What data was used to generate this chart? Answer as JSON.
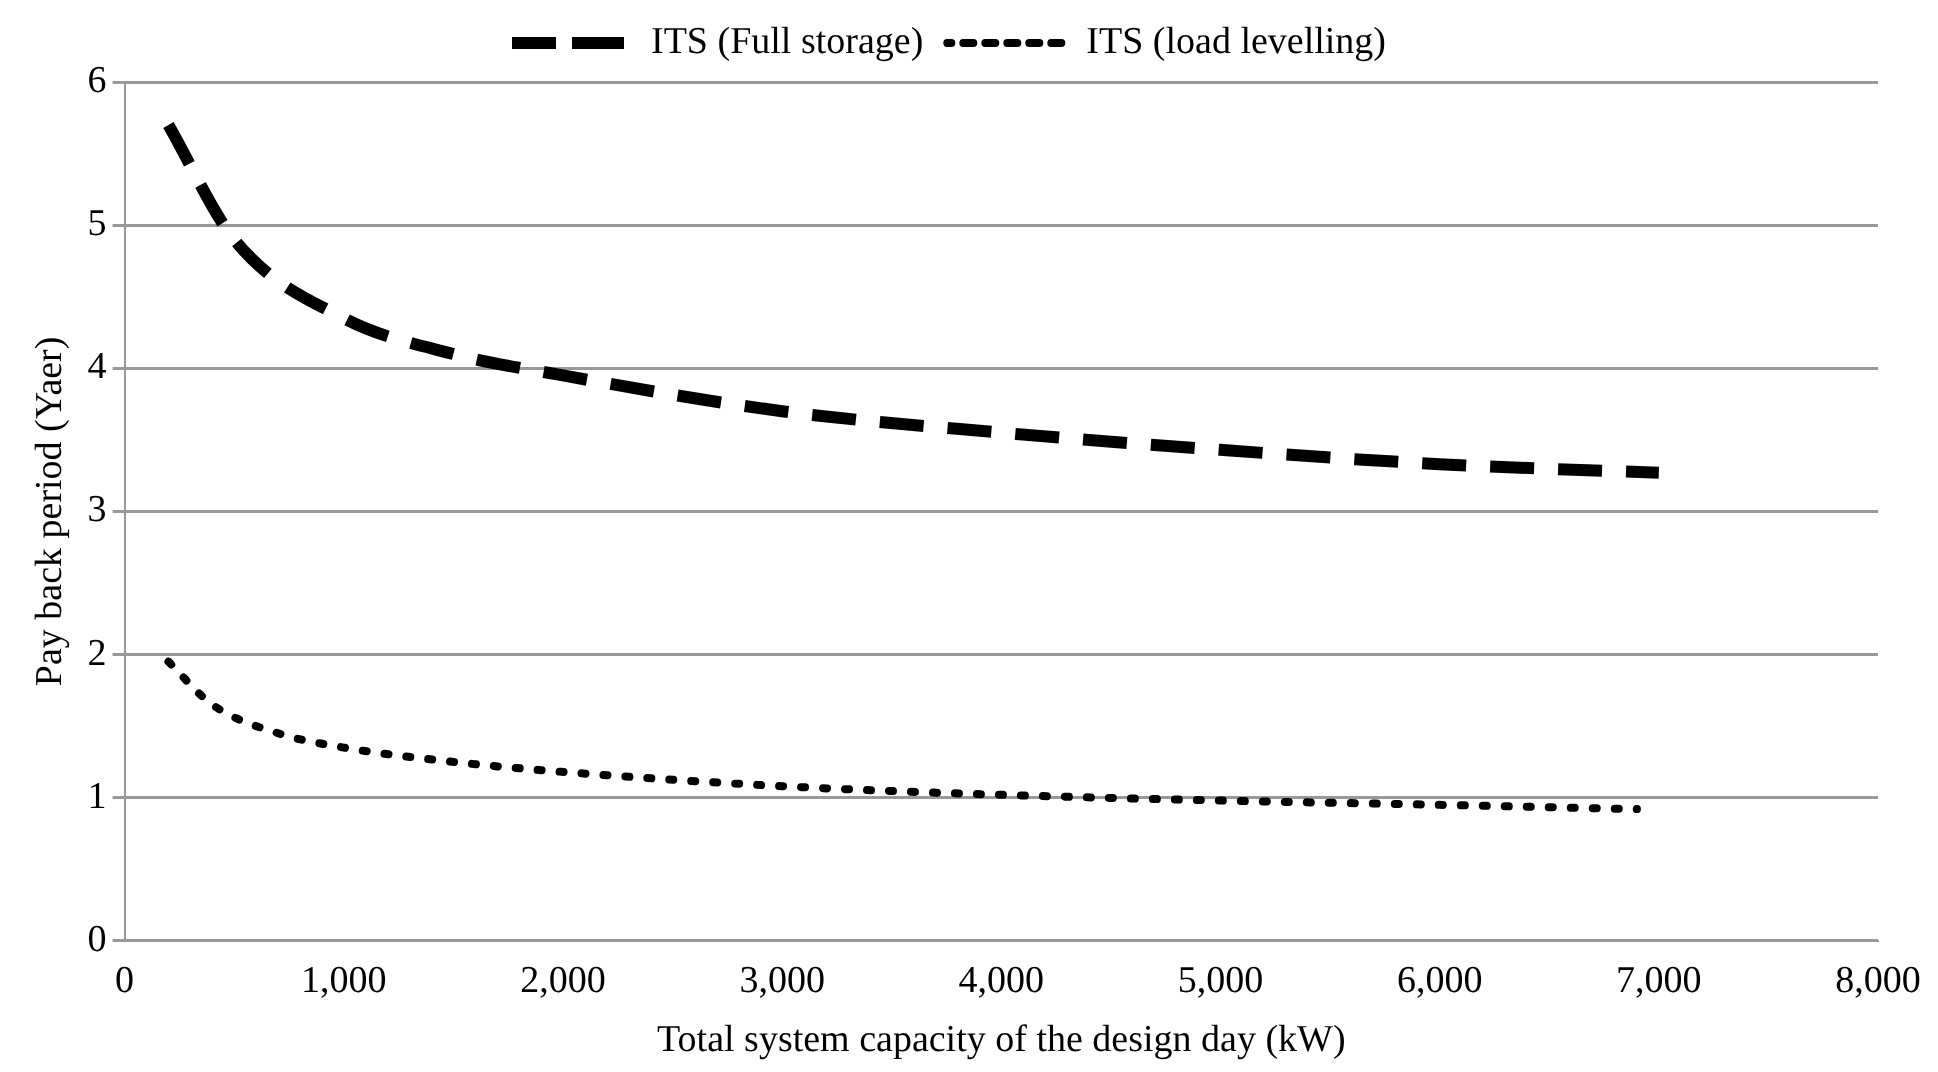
{
  "chart_data": {
    "type": "line",
    "xlabel": "Total system capacity of the design day (kW)",
    "ylabel": "Pay back period (Yaer)",
    "xlim": [
      0,
      8000
    ],
    "xticks": [
      {
        "value": 0,
        "label": "0"
      },
      {
        "value": 1000,
        "label": "1,000"
      },
      {
        "value": 2000,
        "label": "2,000"
      },
      {
        "value": 3000,
        "label": "3,000"
      },
      {
        "value": 4000,
        "label": "4,000"
      },
      {
        "value": 5000,
        "label": "5,000"
      },
      {
        "value": 6000,
        "label": "6,000"
      },
      {
        "value": 7000,
        "label": "7,000"
      },
      {
        "value": 8000,
        "label": "8,000"
      }
    ],
    "ylim": [
      0,
      6
    ],
    "yticks": [
      0,
      1,
      2,
      3,
      4,
      5,
      6
    ],
    "grid": "y",
    "legend": "top",
    "marker": "none",
    "series": [
      {
        "name": "ITS (Full storage)",
        "color": "#000000",
        "line_style": "dashed",
        "x": [
          200,
          500,
          1000,
          1500,
          2000,
          3000,
          4000,
          5000,
          6000,
          7000
        ],
        "values": [
          5.7,
          4.9,
          4.35,
          4.1,
          3.95,
          3.7,
          3.55,
          3.43,
          3.33,
          3.27
        ]
      },
      {
        "name": "ITS (load levelling)",
        "color": "#000000",
        "line_style": "dotted",
        "x": [
          200,
          400,
          700,
          1000,
          1500,
          2000,
          3000,
          4000,
          5000,
          6000,
          6900
        ],
        "values": [
          1.95,
          1.65,
          1.45,
          1.35,
          1.25,
          1.18,
          1.08,
          1.02,
          0.98,
          0.95,
          0.92
        ]
      }
    ]
  }
}
